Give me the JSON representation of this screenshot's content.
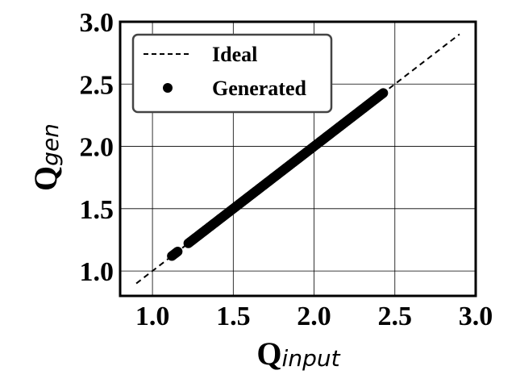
{
  "chart_data": {
    "type": "scatter",
    "title": "",
    "xlabel": {
      "main": "Q",
      "sub": "input"
    },
    "ylabel": {
      "main": "Q",
      "sub": "gen"
    },
    "xlim": [
      0.8,
      3.0
    ],
    "ylim": [
      0.8,
      3.0
    ],
    "xticks": [
      "1.0",
      "1.5",
      "2.0",
      "2.5",
      "3.0"
    ],
    "yticks": [
      "1.0",
      "1.5",
      "2.0",
      "2.5",
      "3.0"
    ],
    "grid": true,
    "legend": {
      "position": "top-left",
      "entries": [
        "Ideal",
        "Generated"
      ]
    },
    "series": [
      {
        "name": "Ideal",
        "style": "dashed-line",
        "color": "#000000",
        "x": [
          0.9,
          2.9
        ],
        "y": [
          0.9,
          2.9
        ]
      },
      {
        "name": "Generated",
        "style": "markers",
        "color": "#000000",
        "x_range": [
          1.12,
          2.43
        ],
        "gap": [
          1.16,
          1.22
        ]
      }
    ]
  }
}
